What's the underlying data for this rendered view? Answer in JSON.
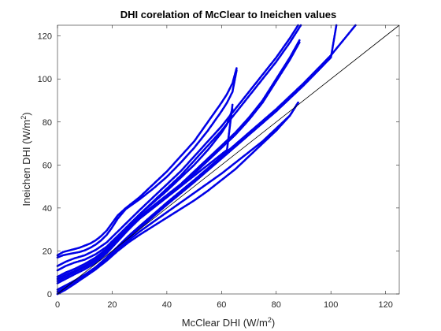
{
  "chart_data": {
    "type": "scatter",
    "title": "DHI corelation of McClear to Ineichen values",
    "xlabel": {
      "prefix": "McClear DHI (W/m",
      "sup": "2",
      "suffix": ")"
    },
    "ylabel": {
      "prefix": "Ineichen DHI (W/m",
      "sup": "2",
      "suffix": ")"
    },
    "xlim": [
      0,
      125
    ],
    "ylim": [
      0,
      125
    ],
    "xticks": [
      0,
      20,
      40,
      60,
      80,
      100,
      120
    ],
    "yticks": [
      0,
      20,
      40,
      60,
      80,
      100,
      120
    ],
    "grid": false,
    "reference_line": {
      "x": [
        0,
        125
      ],
      "y": [
        0,
        125
      ],
      "color": "#000000"
    },
    "marker_color": "#0000e6",
    "series": [
      {
        "branches": [
          {
            "x": [
              0,
              2,
              5,
              8,
              10,
              12,
              14,
              16,
              18,
              20,
              22,
              25,
              30,
              35,
              40,
              45,
              50,
              55,
              60,
              62,
              64,
              65.5
            ],
            "y": [
              18,
              19.5,
              20.5,
              21.5,
              22.5,
              23.5,
              25,
              27,
              29.5,
              33,
              36.5,
              40,
              45,
              51,
              57,
              64,
              71,
              80,
              89,
              93,
              98,
              105
            ]
          },
          {
            "x": [
              0,
              2,
              5,
              8,
              10,
              12,
              14,
              16,
              18,
              20,
              22,
              25,
              30,
              35,
              40,
              45,
              50,
              55,
              60,
              62,
              64,
              65.5
            ],
            "y": [
              17,
              18,
              18.8,
              19.5,
              20.3,
              21.5,
              23,
              25,
              27.5,
              31,
              35,
              39.5,
              44,
              49,
              54.5,
              61,
              68,
              76,
              85,
              89,
              94,
              104
            ]
          }
        ]
      },
      {
        "branches": [
          {
            "x": [
              0,
              3,
              6,
              10,
              14,
              18,
              22,
              26,
              30,
              35,
              40,
              45,
              50,
              55,
              60,
              65,
              70,
              75,
              80,
              85,
              88
            ],
            "y": [
              13,
              15,
              16.5,
              18,
              20.5,
              24,
              29,
              34,
              39,
              45,
              51,
              57,
              64,
              71,
              78,
              86,
              94,
              102,
              110,
              119,
              125
            ]
          },
          {
            "x": [
              0,
              3,
              6,
              10,
              14,
              18,
              22,
              26,
              30,
              35,
              40,
              45,
              50,
              55,
              60,
              65,
              70,
              75,
              80,
              85,
              89
            ],
            "y": [
              11,
              13,
              14.5,
              16,
              18.5,
              22,
              27,
              32,
              37,
              43,
              49,
              55,
              62,
              69,
              76,
              84,
              92,
              100,
              108,
              117,
              125
            ]
          }
        ]
      },
      {
        "branches": [
          {
            "x": [
              0,
              3,
              6,
              10,
              14,
              18,
              22,
              26,
              30,
              35,
              40,
              45,
              50,
              55,
              60,
              65,
              70,
              75,
              80,
              85,
              88.5
            ],
            "y": [
              8,
              10,
              11.5,
              14,
              17,
              21,
              26,
              31,
              36,
              41,
              46,
              51,
              57,
              63,
              69,
              75,
              82,
              90,
              100,
              110,
              118
            ]
          },
          {
            "x": [
              0,
              3,
              6,
              10,
              14,
              18,
              22,
              26,
              30,
              35,
              40,
              45,
              50,
              55,
              60,
              65,
              70,
              75,
              80,
              85,
              88.5
            ],
            "y": [
              7,
              9,
              10.5,
              13,
              16,
              20,
              25,
              30,
              35,
              40,
              45,
              50,
              56,
              62,
              68,
              74,
              81,
              89,
              99,
              109,
              117
            ]
          }
        ]
      },
      {
        "branches": [
          {
            "x": [
              0,
              3,
              6,
              10,
              14,
              18,
              22,
              26,
              30,
              35,
              40,
              45,
              50,
              55,
              60,
              62,
              64
            ],
            "y": [
              6,
              8,
              10,
              12.5,
              15.5,
              20,
              26,
              32,
              37,
              42.5,
              48,
              54,
              60,
              67,
              75,
              79,
              86
            ]
          },
          {
            "x": [
              0,
              3,
              6,
              10,
              14,
              18,
              22,
              26,
              30,
              35,
              40,
              45,
              50,
              55,
              60,
              62,
              64
            ],
            "y": [
              5,
              7,
              9,
              11.5,
              14.5,
              19,
              24.5,
              30,
              35,
              40,
              45,
              50,
              55,
              60,
              65,
              67,
              88
            ]
          }
        ]
      },
      {
        "branches": [
          {
            "x": [
              0,
              3,
              6,
              10,
              14,
              18,
              22,
              26,
              30,
              35,
              40,
              50,
              60,
              70,
              80,
              90,
              100,
              109
            ],
            "y": [
              2,
              4,
              6,
              9,
              12.5,
              17,
              22,
              27,
              31.5,
              37,
              42.5,
              53,
              64,
              75,
              86,
              98,
              111,
              125
            ]
          },
          {
            "x": [
              0,
              3,
              6,
              10,
              14,
              18,
              22,
              26,
              30,
              35,
              40,
              50,
              60,
              70,
              80,
              90,
              100,
              102
            ],
            "y": [
              1,
              3,
              5,
              8,
              11.5,
              16,
              21,
              26,
              30.5,
              36,
              41.5,
              52,
              63,
              74,
              85,
              97,
              110,
              125
            ]
          }
        ]
      },
      {
        "branches": [
          {
            "x": [
              0,
              3,
              6,
              10,
              14,
              18,
              22,
              26,
              30,
              35,
              40,
              45,
              50,
              55,
              60,
              65,
              70,
              75,
              80,
              85,
              88
            ],
            "y": [
              0,
              2.5,
              5,
              8.5,
              12,
              16,
              20.5,
              25,
              29,
              33.5,
              38,
              42.5,
              47,
              51.5,
              56,
              61,
              66,
              71,
              77,
              83,
              89
            ]
          },
          {
            "x": [
              0,
              3,
              6,
              10,
              14,
              18,
              22,
              26,
              30,
              35,
              40,
              45,
              50,
              55,
              60,
              65,
              70,
              75,
              80,
              85,
              88
            ],
            "y": [
              0,
              2,
              4.5,
              8,
              11.5,
              15.5,
              20,
              24,
              27.5,
              31.5,
              35.5,
              39.5,
              43.5,
              48,
              53,
              58,
              64,
              70,
              76,
              83,
              89
            ]
          }
        ]
      }
    ]
  }
}
